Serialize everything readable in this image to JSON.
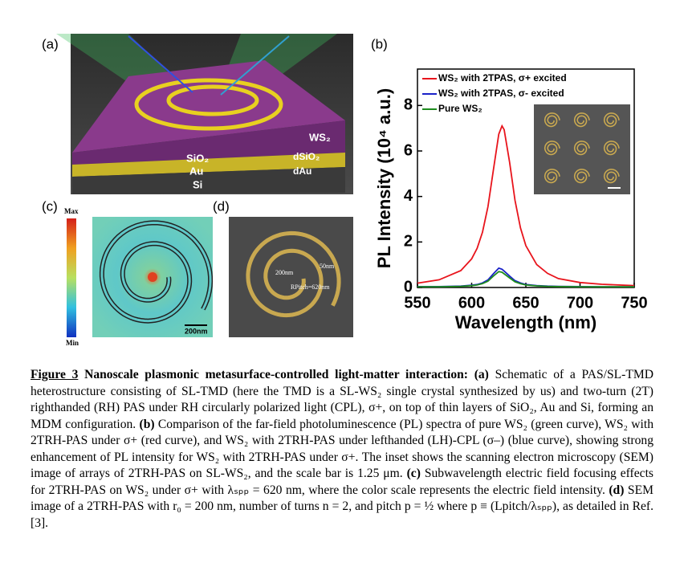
{
  "panels": {
    "a": {
      "label": "(a)",
      "ws2": "WS₂",
      "sio2": "SiO₂",
      "au": "Au",
      "si": "Si",
      "d_sio2": "dSiO₂",
      "d_au": "dAu"
    },
    "b": {
      "label": "(b)"
    },
    "c": {
      "label": "(c)",
      "max": "Max",
      "min": "Min",
      "scale": "200nm"
    },
    "d": {
      "label": "(d)",
      "r0": "200nm",
      "width": "50nm",
      "pitch": "RPitch=620nm"
    }
  },
  "chart_data": {
    "type": "line",
    "x_label": "Wavelength (nm)",
    "y_label": "PL Intensity  (10⁴ a.u.)",
    "x": [
      550,
      570,
      590,
      600,
      605,
      610,
      615,
      620,
      625,
      628,
      630,
      635,
      640,
      645,
      650,
      660,
      670,
      680,
      700,
      720,
      750
    ],
    "series": [
      {
        "name": "WS₂ with 2TPAS, σ+ excited",
        "color": "#e8141c",
        "values": [
          0.19,
          0.34,
          0.74,
          1.26,
          1.72,
          2.43,
          3.55,
          5.15,
          6.74,
          7.1,
          6.93,
          5.5,
          3.83,
          2.62,
          1.84,
          1.01,
          0.62,
          0.39,
          0.22,
          0.14,
          0.08
        ]
      },
      {
        "name": "WS₂ with 2TPAS, σ- excited",
        "color": "#1a22c8",
        "values": [
          0.04,
          0.04,
          0.06,
          0.1,
          0.13,
          0.2,
          0.33,
          0.6,
          0.85,
          0.8,
          0.72,
          0.5,
          0.3,
          0.2,
          0.13,
          0.08,
          0.06,
          0.05,
          0.04,
          0.03,
          0.03
        ]
      },
      {
        "name": "Pure WS₂",
        "color": "#1e8c1e",
        "values": [
          0.03,
          0.03,
          0.05,
          0.08,
          0.11,
          0.17,
          0.28,
          0.5,
          0.7,
          0.67,
          0.6,
          0.42,
          0.25,
          0.17,
          0.11,
          0.07,
          0.05,
          0.04,
          0.03,
          0.03,
          0.03
        ]
      }
    ],
    "xlim": [
      550,
      750
    ],
    "xticks": [
      550,
      600,
      650,
      700,
      750
    ],
    "ylim": [
      0,
      9.6
    ],
    "yticks": [
      0,
      2,
      4,
      6,
      8
    ],
    "legend": "upper left"
  },
  "caption": {
    "figure_number": "Figure 3",
    "heading": "Nanoscale plasmonic metasurface-controlled light-matter interaction:",
    "parts": [
      {
        "label": "(a)",
        "text": "Schematic of a PAS/SL-TMD heterostructure consisting of SL-TMD (here the TMD is a SL-WS₂ single crystal synthesized by us) and two-turn (2T) righthanded (RH) PAS under RH circularly polarized light (CPL), σ+, on top of thin layers of SiO₂, Au and Si, forming an MDM configuration."
      },
      {
        "label": "(b)",
        "text": "Comparison of the far-field photoluminescence (PL) spectra of pure WS₂ (green curve), WS₂ with 2TRH-PAS under σ+ (red curve), and WS₂ with 2TRH-PAS under lefthanded (LH)-CPL (σ–) (blue curve), showing strong enhancement of PL intensity for WS₂ with 2TRH-PAS under σ+. The inset shows the scanning electron microscopy (SEM) image of arrays of 2TRH-PAS on SL-WS₂, and the scale bar is 1.25 μm."
      },
      {
        "label": "(c)",
        "text": "Subwavelength electric field focusing effects for 2TRH-PAS on WS₂ under σ+ with λₛₚₚ = 620 nm, where the color scale represents the electric field intensity."
      },
      {
        "label": "(d)",
        "text": "SEM image of a 2TRH-PAS with r₀ = 200 nm, number of turns n = 2, and pitch p = ½ where p ≡ (Lpitch/λₛₚₚ), as detailed in Ref. [3]."
      }
    ]
  }
}
